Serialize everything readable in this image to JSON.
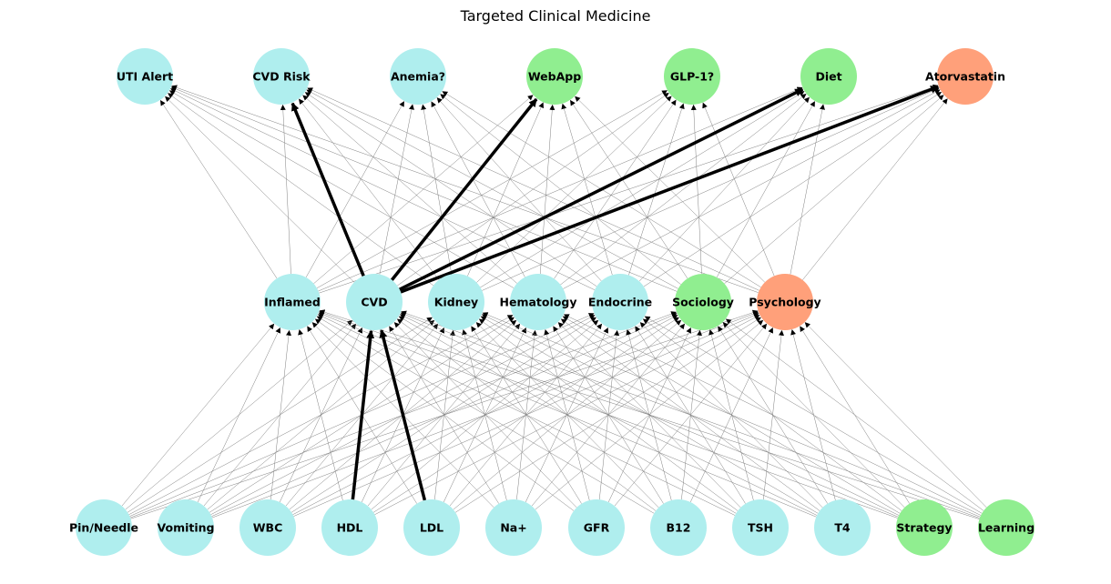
{
  "title": "Targeted Clinical Medicine",
  "colors": {
    "blue": "#afeeee",
    "green": "#90ee90",
    "orange": "#ffa07a",
    "edge": "#808080",
    "highlight": "#000000"
  },
  "layers": {
    "outputs": [
      {
        "label": "UTI Alert",
        "color": "blue"
      },
      {
        "label": "CVD Risk",
        "color": "blue"
      },
      {
        "label": "Anemia?",
        "color": "blue"
      },
      {
        "label": "WebApp",
        "color": "green"
      },
      {
        "label": "GLP-1?",
        "color": "green"
      },
      {
        "label": "Diet",
        "color": "green"
      },
      {
        "label": "Atorvastatin",
        "color": "orange"
      }
    ],
    "hidden": [
      {
        "label": "Inflamed",
        "color": "blue"
      },
      {
        "label": "CVD",
        "color": "blue"
      },
      {
        "label": "Kidney",
        "color": "blue"
      },
      {
        "label": "Hematology",
        "color": "blue"
      },
      {
        "label": "Endocrine",
        "color": "blue"
      },
      {
        "label": "Sociology",
        "color": "green"
      },
      {
        "label": "Psychology",
        "color": "orange"
      }
    ],
    "inputs": [
      {
        "label": "Pin/Needle",
        "color": "blue"
      },
      {
        "label": "Vomiting",
        "color": "blue"
      },
      {
        "label": "WBC",
        "color": "blue"
      },
      {
        "label": "HDL",
        "color": "blue"
      },
      {
        "label": "LDL",
        "color": "blue"
      },
      {
        "label": "Na+",
        "color": "blue"
      },
      {
        "label": "GFR",
        "color": "blue"
      },
      {
        "label": "B12",
        "color": "blue"
      },
      {
        "label": "TSH",
        "color": "blue"
      },
      {
        "label": "T4",
        "color": "blue"
      },
      {
        "label": "Strategy",
        "color": "green"
      },
      {
        "label": "Learning",
        "color": "green"
      }
    ]
  },
  "connectivity": "fully-connected between adjacent layers",
  "highlighted_edges": [
    {
      "from": "HDL",
      "to": "CVD"
    },
    {
      "from": "LDL",
      "to": "CVD"
    },
    {
      "from": "CVD",
      "to": "CVD Risk"
    },
    {
      "from": "CVD",
      "to": "WebApp"
    },
    {
      "from": "CVD",
      "to": "Diet"
    },
    {
      "from": "CVD",
      "to": "Atorvastatin"
    }
  ]
}
